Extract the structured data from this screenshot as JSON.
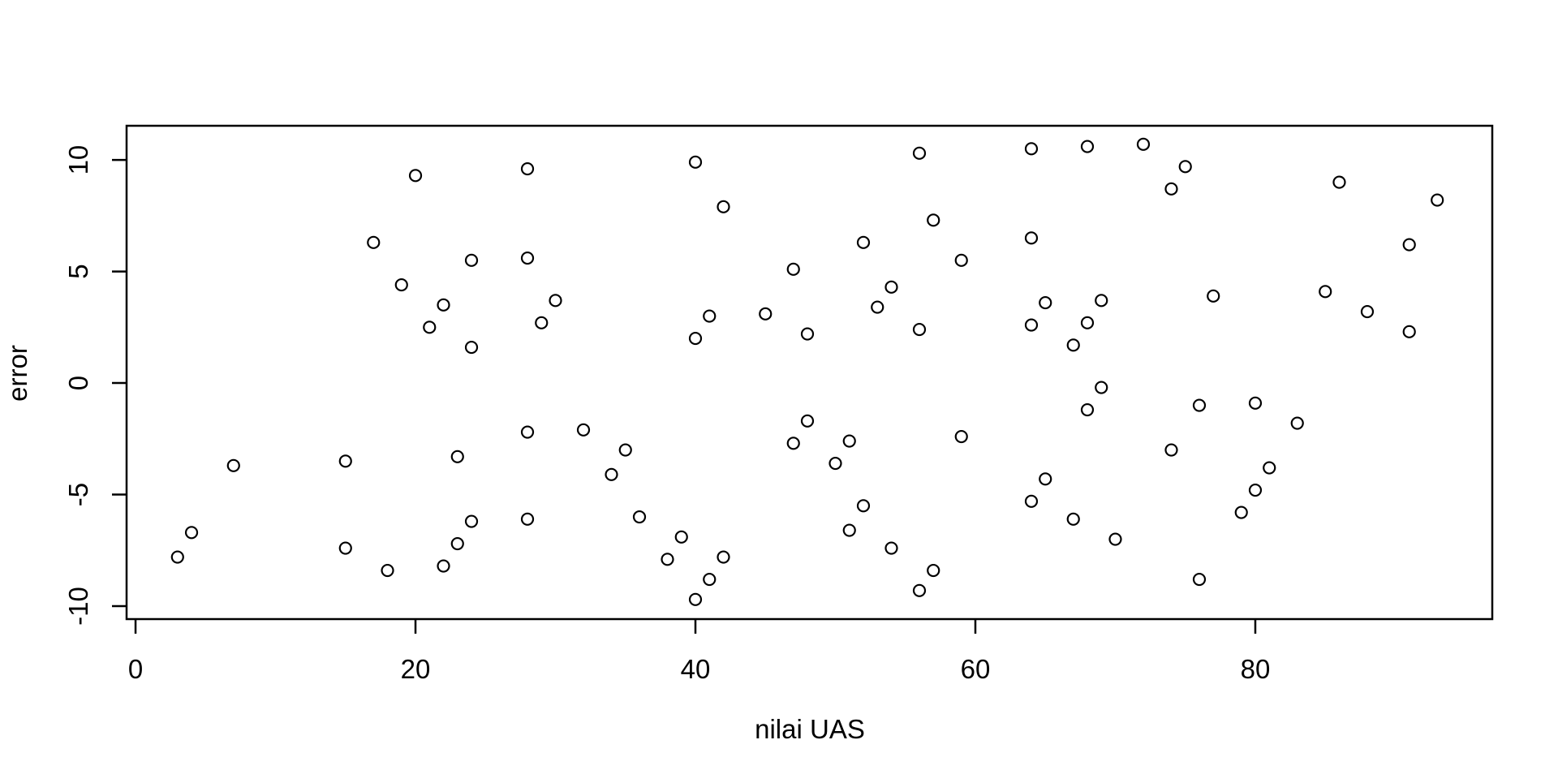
{
  "page": {
    "background": "#ffffff",
    "foreground": "#000000"
  },
  "chart_data": {
    "type": "scatter",
    "title": "",
    "xlabel": "nilai UAS",
    "ylabel": "error",
    "x_ticks": [
      0,
      20,
      40,
      60,
      80
    ],
    "y_ticks": [
      -10,
      -5,
      0,
      5,
      10
    ],
    "xlim": [
      -0.64,
      96.93
    ],
    "ylim": [
      -10.58,
      11.53
    ],
    "grid": false,
    "legend": null,
    "marker": {
      "shape": "open-circle",
      "color": "#000000",
      "radius_px": 7,
      "stroke_px": 2.2
    },
    "axis_color": "#000000",
    "points": [
      [
        3,
        -7.8
      ],
      [
        4,
        -6.7
      ],
      [
        7,
        -3.7
      ],
      [
        15,
        -3.5
      ],
      [
        15,
        -7.4
      ],
      [
        17,
        6.3
      ],
      [
        18,
        -8.4
      ],
      [
        19,
        4.4
      ],
      [
        20,
        9.3
      ],
      [
        21,
        2.5
      ],
      [
        22,
        3.5
      ],
      [
        22,
        -8.2
      ],
      [
        23,
        -3.3
      ],
      [
        23,
        -7.2
      ],
      [
        24,
        5.5
      ],
      [
        24,
        1.6
      ],
      [
        24,
        -6.2
      ],
      [
        28,
        9.6
      ],
      [
        28,
        5.6
      ],
      [
        28,
        -2.2
      ],
      [
        28,
        -6.1
      ],
      [
        29,
        2.7
      ],
      [
        30,
        3.7
      ],
      [
        32,
        -2.1
      ],
      [
        34,
        -4.1
      ],
      [
        35,
        -3.0
      ],
      [
        36,
        -6.0
      ],
      [
        38,
        -7.9
      ],
      [
        39,
        -6.9
      ],
      [
        40,
        9.9
      ],
      [
        40,
        2.0
      ],
      [
        40,
        -9.7
      ],
      [
        41,
        3.0
      ],
      [
        41,
        -8.8
      ],
      [
        42,
        7.9
      ],
      [
        42,
        -7.8
      ],
      [
        45,
        3.1
      ],
      [
        47,
        5.1
      ],
      [
        47,
        -2.7
      ],
      [
        48,
        2.2
      ],
      [
        48,
        -1.7
      ],
      [
        50,
        -3.6
      ],
      [
        51,
        -2.6
      ],
      [
        51,
        -6.6
      ],
      [
        52,
        6.3
      ],
      [
        52,
        -5.5
      ],
      [
        53,
        3.4
      ],
      [
        54,
        4.3
      ],
      [
        54,
        -7.4
      ],
      [
        56,
        10.3
      ],
      [
        56,
        2.4
      ],
      [
        56,
        -9.3
      ],
      [
        57,
        7.3
      ],
      [
        57,
        -8.4
      ],
      [
        59,
        5.5
      ],
      [
        59,
        -2.4
      ],
      [
        64,
        10.5
      ],
      [
        64,
        6.5
      ],
      [
        64,
        2.6
      ],
      [
        64,
        -5.3
      ],
      [
        65,
        3.6
      ],
      [
        65,
        -4.3
      ],
      [
        67,
        1.7
      ],
      [
        67,
        -6.1
      ],
      [
        68,
        10.6
      ],
      [
        68,
        2.7
      ],
      [
        68,
        -1.2
      ],
      [
        69,
        3.7
      ],
      [
        69,
        -0.2
      ],
      [
        70,
        -7.0
      ],
      [
        72,
        10.7
      ],
      [
        74,
        8.7
      ],
      [
        74,
        -3.0
      ],
      [
        75,
        9.7
      ],
      [
        76,
        -1.0
      ],
      [
        76,
        -8.8
      ],
      [
        77,
        3.9
      ],
      [
        79,
        -5.8
      ],
      [
        80,
        -0.9
      ],
      [
        80,
        -4.8
      ],
      [
        81,
        -3.8
      ],
      [
        83,
        -1.8
      ],
      [
        85,
        4.1
      ],
      [
        86,
        9.0
      ],
      [
        88,
        3.2
      ],
      [
        91,
        6.2
      ],
      [
        91,
        2.3
      ],
      [
        93,
        8.2
      ]
    ]
  }
}
